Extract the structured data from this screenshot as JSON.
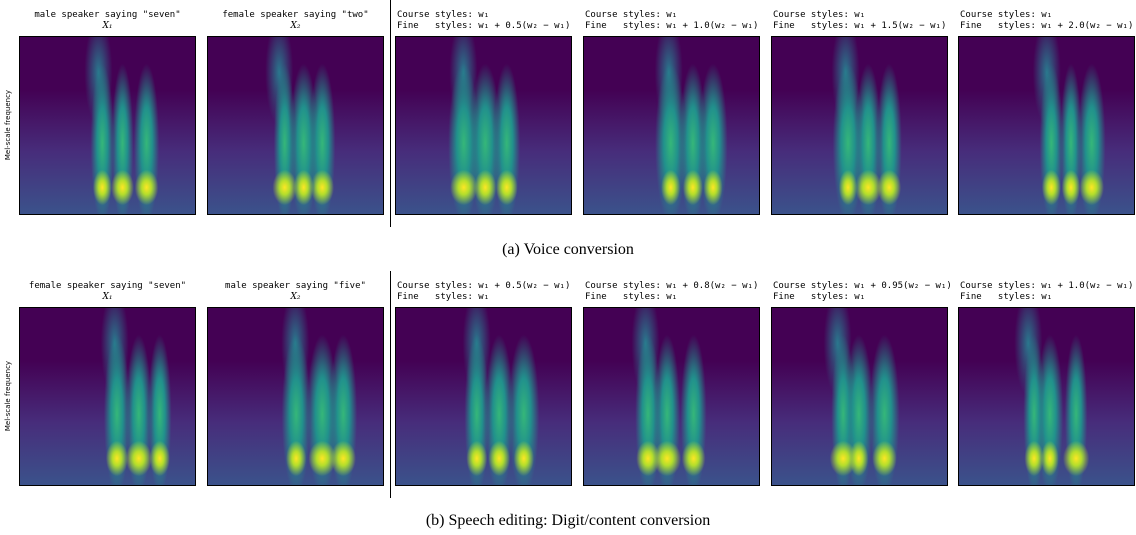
{
  "y_label": "Mel-scale frequency",
  "rows": [
    {
      "caption": "(a) Voice conversion",
      "sources": [
        {
          "title": "male speaker saying \"seven\"",
          "symbol": "X₁"
        },
        {
          "title": "female speaker saying \"two\"",
          "symbol": "X₂"
        }
      ],
      "mixes": [
        {
          "course": "Course styles: w₁",
          "fine": "Fine   styles: w₁ + 0.5(w₂ − w₁)"
        },
        {
          "course": "Course styles: w₁",
          "fine": "Fine   styles: w₁ + 1.0(w₂ − w₁)"
        },
        {
          "course": "Course styles: w₁",
          "fine": "Fine   styles: w₁ + 1.5(w₂ − w₁)"
        },
        {
          "course": "Course styles: w₁",
          "fine": "Fine   styles: w₁ + 2.0(w₂ − w₁)"
        }
      ]
    },
    {
      "caption": "(b) Speech editing: Digit/content conversion",
      "sources": [
        {
          "title": "female speaker saying \"seven\"",
          "symbol": "X₁"
        },
        {
          "title": "male speaker saying \"five\"",
          "symbol": "X₂"
        }
      ],
      "mixes": [
        {
          "course": "Course styles: w₁ + 0.5(w₂ − w₁)",
          "fine": "Fine   styles: w₁"
        },
        {
          "course": "Course styles: w₁ + 0.8(w₂ − w₁)",
          "fine": "Fine   styles: w₁"
        },
        {
          "course": "Course styles: w₁ + 0.95(w₂ − w₁)",
          "fine": "Fine   styles: w₁"
        },
        {
          "course": "Course styles: w₁ + 1.0(w₂ − w₁)",
          "fine": "Fine   styles: w₁"
        }
      ]
    }
  ]
}
